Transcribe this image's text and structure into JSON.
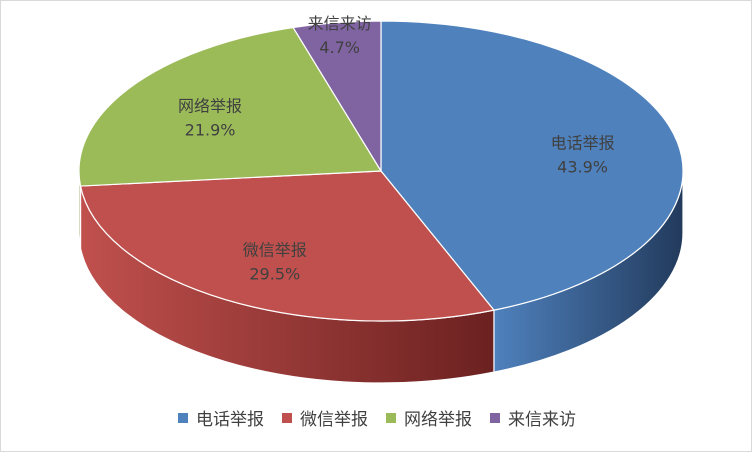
{
  "chart_data": {
    "type": "pie",
    "style": "3d",
    "title": "",
    "slices": [
      {
        "label": "电话举报",
        "value": 43.9,
        "value_label": "43.9%",
        "color": "#4f81bd",
        "side_color": "#223a5c"
      },
      {
        "label": "微信举报",
        "value": 29.5,
        "value_label": "29.5%",
        "color": "#c0504d",
        "side_color": "#6b2120"
      },
      {
        "label": "网络举报",
        "value": 21.9,
        "value_label": "21.9%",
        "color": "#9bbb59",
        "side_color": "#55682b"
      },
      {
        "label": "来信来访",
        "value": 4.7,
        "value_label": "4.7%",
        "color": "#8064a2",
        "side_color": "#45355a"
      }
    ],
    "legend": {
      "position": "bottom"
    }
  }
}
